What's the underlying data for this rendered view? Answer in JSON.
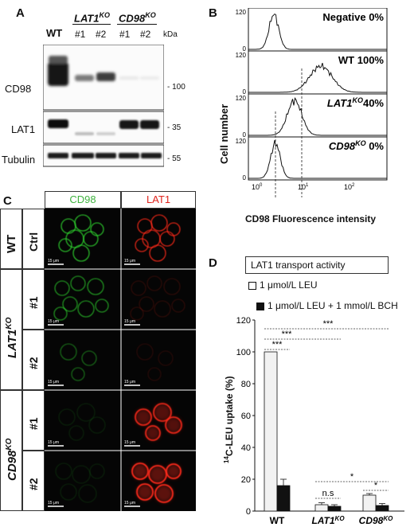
{
  "panels": {
    "A": {
      "letter": "A",
      "lanes": [
        "WT",
        "#1",
        "#2",
        "#1",
        "#2"
      ],
      "groups": [
        {
          "base": "LAT1",
          "sup": "KO"
        },
        {
          "base": "CD98",
          "sup": "KO"
        }
      ],
      "kda_label": "kDa",
      "blots": [
        {
          "name": "CD98",
          "marker": "100"
        },
        {
          "name": "LAT1",
          "marker": "35"
        },
        {
          "name": "Tubulin",
          "marker": "55"
        }
      ]
    },
    "B": {
      "letter": "B",
      "ylabel": "Cell number",
      "xlabel": "CD98 Fluorescence intensity",
      "x_ticks": [
        {
          "base": "10",
          "exp": "0"
        },
        {
          "base": "10",
          "exp": "1"
        },
        {
          "base": "10",
          "exp": "2"
        }
      ],
      "y_top_tick": "120",
      "y_zero_tick": "0",
      "histograms": [
        {
          "label_base": "Negative",
          "label_sup": "",
          "label_pct": " 0%",
          "italic": false
        },
        {
          "label_base": "WT",
          "label_sup": "",
          "label_pct": " 100%",
          "italic": false
        },
        {
          "label_base": "LAT1",
          "label_sup": "KO",
          "label_pct": "40%",
          "italic": true
        },
        {
          "label_base": "CD98",
          "label_sup": "KO",
          "label_pct": " 0%",
          "italic": true
        }
      ]
    },
    "C": {
      "letter": "C",
      "col_headers": [
        {
          "text": "CD98",
          "color": "#3fb33f"
        },
        {
          "text": "LAT1",
          "color": "#e0231c"
        }
      ],
      "groups": [
        {
          "base": "WT",
          "sup": ""
        },
        {
          "base": "LAT1",
          "sup": "KO"
        },
        {
          "base": "CD98",
          "sup": "KO"
        }
      ],
      "rows": [
        "Ctrl",
        "#1",
        "#2",
        "#1",
        "#2"
      ],
      "scalebar": "15 μm"
    },
    "D": {
      "letter": "D",
      "legend_title": "LAT1 transport activity",
      "legend_items": [
        "1 μmol/L LEU",
        "1 μmol/L LEU + 1 mmol/L BCH"
      ],
      "ylabel_sup": "14",
      "ylabel_rest": "C-LEU uptake (%)",
      "significance": {
        "stars": "***",
        "star_single": "*",
        "ns": "n.s"
      }
    }
  },
  "chart_data": {
    "type": "bar",
    "title": "LAT1 transport activity",
    "categories": [
      "WT",
      "LAT1KO",
      "CD98KO"
    ],
    "ylabel": "14C-LEU uptake (%)",
    "ylim": [
      0,
      120
    ],
    "yticks": [
      0,
      20,
      40,
      60,
      80,
      100,
      120
    ],
    "series": [
      {
        "name": "1 μmol/L LEU",
        "values": [
          100,
          4,
          10
        ],
        "errors": [
          0,
          1.2,
          1.0
        ],
        "color": "#f2f2f2"
      },
      {
        "name": "1 μmol/L LEU + 1 mmol/L BCH",
        "values": [
          16,
          3,
          3.5
        ],
        "errors": [
          4,
          1.0,
          1.2
        ],
        "color": "#111111"
      }
    ],
    "legend": "top"
  }
}
